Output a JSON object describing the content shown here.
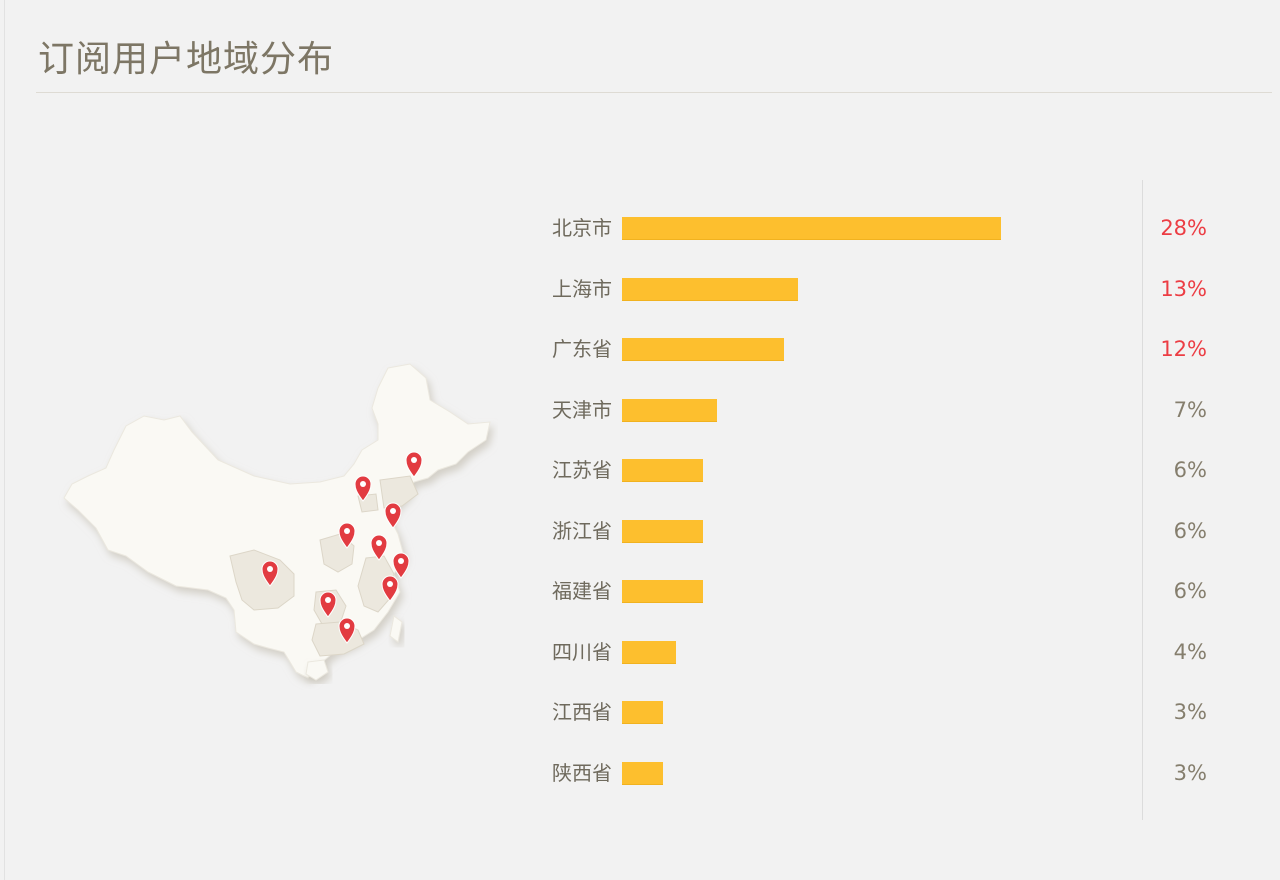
{
  "title": "订阅用户地域分布",
  "colors": {
    "bar": "#fdbf2e",
    "highlight_pct": "#ec3d44",
    "normal_pct": "#857e6d",
    "label": "#6f6a5d"
  },
  "map": {
    "icon": "china-map",
    "marker_icon": "map-pin-icon",
    "marker_count": 10
  },
  "chart_data": {
    "type": "bar",
    "orientation": "horizontal",
    "title": "订阅用户地域分布",
    "categories": [
      "北京市",
      "上海市",
      "广东省",
      "天津市",
      "江苏省",
      "浙江省",
      "福建省",
      "四川省",
      "江西省",
      "陕西省"
    ],
    "values": [
      28,
      13,
      12,
      7,
      6,
      6,
      6,
      4,
      3,
      3
    ],
    "value_labels": [
      "28%",
      "13%",
      "12%",
      "7%",
      "6%",
      "6%",
      "6%",
      "4%",
      "3%",
      "3%"
    ],
    "unit": "%",
    "xlim": [
      0,
      28
    ],
    "highlight_top": 3
  }
}
